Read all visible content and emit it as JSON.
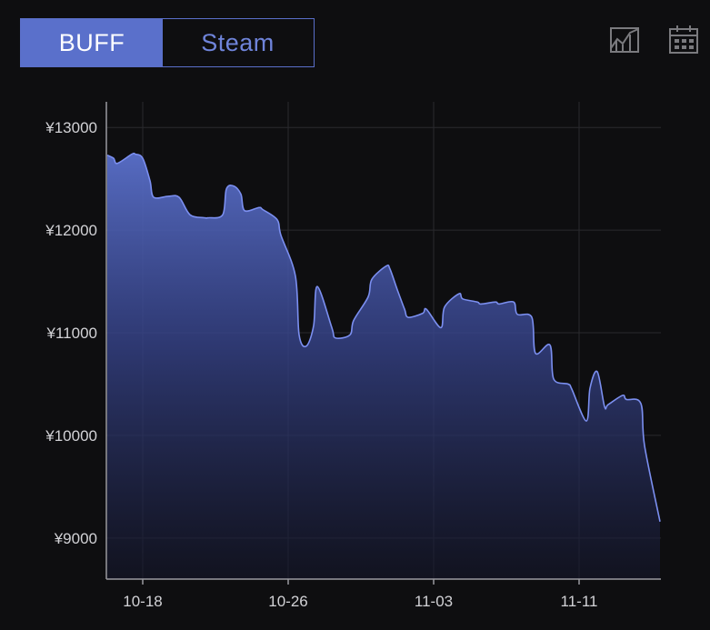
{
  "tabs": [
    {
      "label": "BUFF",
      "active": true
    },
    {
      "label": "Steam",
      "active": false
    }
  ],
  "toolbar": {
    "icons": [
      "line-chart-icon",
      "calendar-icon"
    ]
  },
  "colors": {
    "accent": "#5a70cb",
    "line": "#7b8ff0",
    "background": "#0e0e10",
    "grid": "#2a2a2e"
  },
  "chart_data": {
    "type": "area",
    "title": "",
    "xlabel": "",
    "ylabel": "",
    "x_ticks": [
      "10-18",
      "10-26",
      "11-03",
      "11-11"
    ],
    "y_ticks": [
      "¥13000",
      "¥12000",
      "¥11000",
      "¥10000",
      "¥9000"
    ],
    "ylim": [
      8600,
      13250
    ],
    "grid": true,
    "series": [
      {
        "x": [
          "10-16",
          "10-16",
          "10-17",
          "10-17",
          "10-18",
          "10-18",
          "10-18",
          "10-19",
          "10-19",
          "10-20",
          "10-21",
          "10-21",
          "10-22",
          "10-22",
          "10-23",
          "10-23",
          "10-23",
          "10-24",
          "10-24",
          "10-25",
          "10-25",
          "10-26",
          "10-26",
          "10-27",
          "10-27",
          "10-27",
          "10-28",
          "10-28",
          "10-29",
          "10-29",
          "10-30",
          "10-30",
          "10-31",
          "10-31",
          "11-01",
          "11-01",
          "11-01",
          "11-02",
          "11-02",
          "11-03",
          "11-03",
          "11-04",
          "11-04",
          "11-05",
          "11-05",
          "11-06",
          "11-06",
          "11-07",
          "11-07",
          "11-08",
          "11-08",
          "11-09",
          "11-09",
          "11-10",
          "11-10",
          "11-11",
          "11-11",
          "11-12",
          "11-12",
          "11-12",
          "11-13",
          "11-13",
          "11-14",
          "11-14",
          "11-15",
          "11-15"
        ],
        "y": [
          12730,
          12700,
          12650,
          12740,
          12740,
          12700,
          12480,
          12320,
          12330,
          12320,
          12150,
          12120,
          12120,
          12150,
          12400,
          12430,
          12350,
          12190,
          12220,
          12200,
          12100,
          11950,
          11550,
          10980,
          10870,
          11070,
          11450,
          11050,
          10950,
          10980,
          11120,
          11350,
          11520,
          11650,
          11620,
          11420,
          11230,
          11150,
          11190,
          11230,
          11050,
          11250,
          11380,
          11330,
          11300,
          11280,
          11300,
          11280,
          11300,
          11180,
          11150,
          10800,
          10880,
          10550,
          10500,
          10450,
          10140,
          10460,
          10620,
          10280,
          10300,
          10390,
          10350,
          10310,
          9900,
          9160
        ]
      }
    ]
  }
}
